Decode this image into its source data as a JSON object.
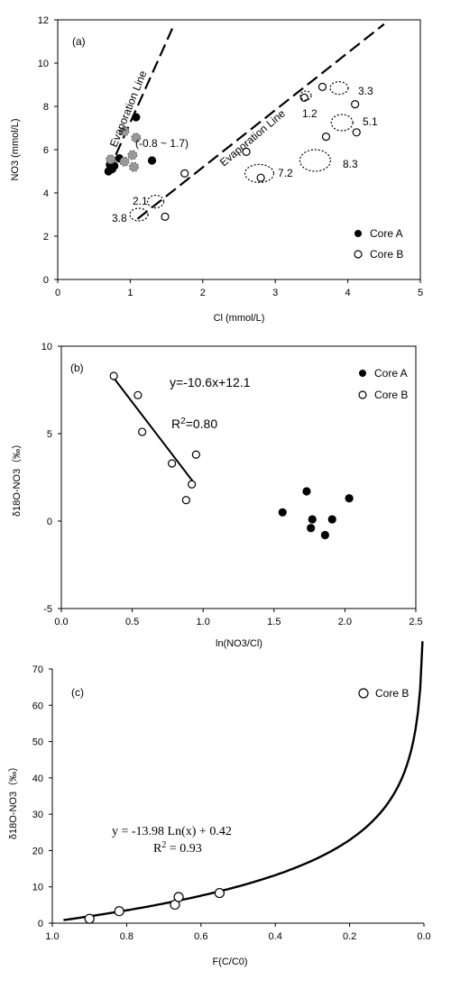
{
  "chart_data": [
    {
      "type": "scatter",
      "panel_label": "(a)",
      "xlabel": "Cl (mmol/L)",
      "ylabel": "NO3 (mmol/L)",
      "xlim": [
        0,
        5
      ],
      "ylim": [
        0,
        12
      ],
      "xticks": [
        "0",
        "1",
        "2",
        "3",
        "4",
        "5"
      ],
      "yticks": [
        "0",
        "2",
        "4",
        "6",
        "8",
        "10",
        "12"
      ],
      "legend_position": "bottom-right",
      "series": [
        {
          "name": "Core A",
          "marker": "filled-circle",
          "x": [
            0.7,
            0.72,
            0.75,
            0.78,
            0.85,
            1.08,
            1.3
          ],
          "y": [
            5.0,
            5.3,
            5.1,
            5.25,
            5.6,
            7.5,
            5.5
          ]
        },
        {
          "name": "Core B",
          "marker": "open-circle",
          "x": [
            1.48,
            1.75,
            2.6,
            2.8,
            3.4,
            3.65,
            3.7,
            4.1,
            4.12
          ],
          "y": [
            2.9,
            4.9,
            5.9,
            4.7,
            8.4,
            8.9,
            6.6,
            8.1,
            6.8
          ]
        }
      ],
      "lines": [
        {
          "label": "Evaporation Line",
          "style": "dashed",
          "x": [
            0.7,
            1.58
          ],
          "y": [
            5.0,
            11.6
          ]
        },
        {
          "label": "Evaporation Line",
          "style": "dashed",
          "x": [
            1.1,
            4.5
          ],
          "y": [
            2.8,
            11.8
          ]
        }
      ],
      "annotations": [
        "(-0.8 ~ 1.7)",
        "2.1",
        "3.8",
        "7.2",
        "8.3",
        "1.2",
        "3.3",
        "5.1"
      ]
    },
    {
      "type": "scatter",
      "panel_label": "(b)",
      "xlabel": "ln(NO3/Cl)",
      "ylabel": "δ18O-NO3（‰）",
      "xlim": [
        0,
        2.5
      ],
      "ylim": [
        -5,
        10
      ],
      "xticks": [
        "0.0",
        "0.5",
        "1.0",
        "1.5",
        "2.0",
        "2.5"
      ],
      "yticks": [
        "-5",
        "0",
        "5",
        "10"
      ],
      "legend_position": "top-right",
      "series": [
        {
          "name": "Core A",
          "marker": "filled-circle",
          "x": [
            1.56,
            1.73,
            1.76,
            1.77,
            1.86,
            1.91,
            2.03
          ],
          "y": [
            0.5,
            1.7,
            -0.4,
            0.1,
            -0.8,
            0.1,
            1.3
          ]
        },
        {
          "name": "Core B",
          "marker": "open-circle",
          "x": [
            0.37,
            0.54,
            0.57,
            0.78,
            0.88,
            0.92,
            0.95
          ],
          "y": [
            8.3,
            7.2,
            5.1,
            3.3,
            1.2,
            2.1,
            3.8
          ]
        }
      ],
      "fit": {
        "equation": "y=-10.6x+12.1",
        "r2": "0.80",
        "slope": -10.6,
        "intercept": 12.1,
        "x_range": [
          0.37,
          0.93
        ]
      }
    },
    {
      "type": "scatter",
      "panel_label": "(c)",
      "xlabel": "F(C/C0)",
      "ylabel": "δ18O-NO3（‰）",
      "xlim": [
        1.0,
        0.0
      ],
      "ylim": [
        0,
        70
      ],
      "xticks": [
        "1.0",
        "0.8",
        "0.6",
        "0.4",
        "0.2",
        "0.0"
      ],
      "yticks": [
        "0",
        "10",
        "20",
        "30",
        "40",
        "50",
        "60",
        "70"
      ],
      "legend_position": "top-right",
      "series": [
        {
          "name": "Core B",
          "marker": "open-circle",
          "x": [
            0.9,
            0.82,
            0.67,
            0.66,
            0.55
          ],
          "y": [
            1.2,
            3.3,
            5.1,
            7.2,
            8.3
          ]
        }
      ],
      "fit": {
        "equation": "y = -13.98 Ln(x) + 0.42",
        "r2": "0.93",
        "a": -13.98,
        "b": 0.42,
        "x_range": [
          0.97,
          0.004
        ]
      }
    }
  ]
}
